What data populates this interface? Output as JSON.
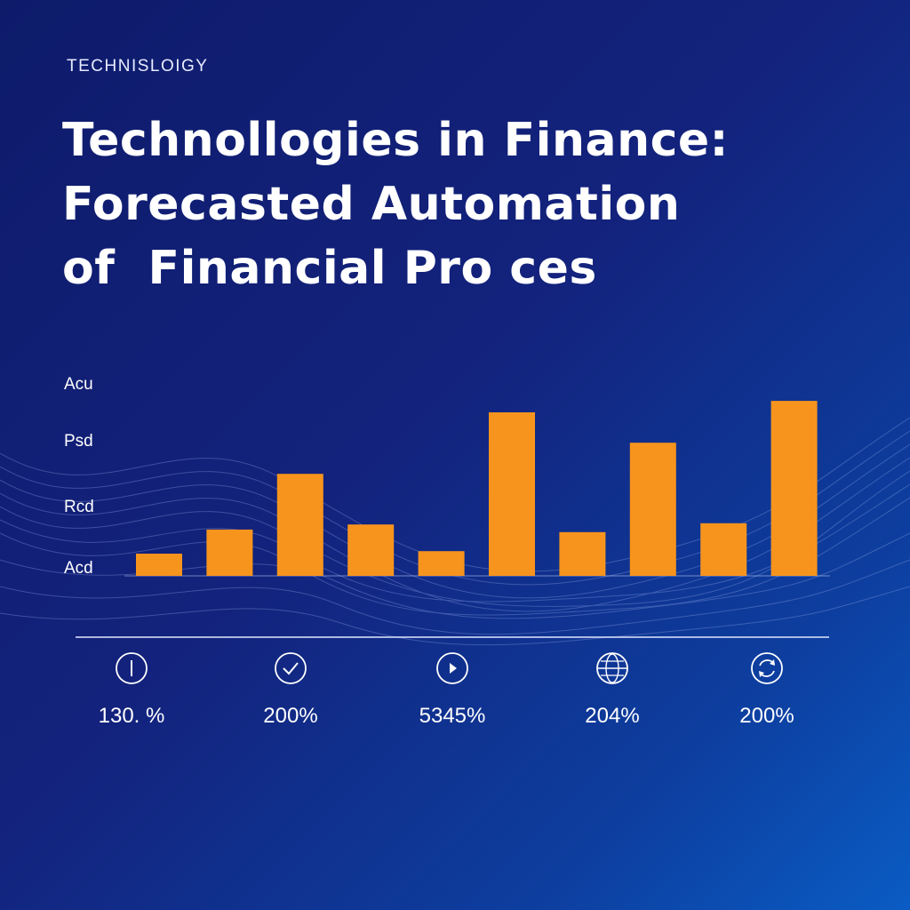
{
  "header": {
    "eyebrow": "TECHNISLOIGY",
    "title_lines": [
      "Technollogies in Finance:",
      "Forecasted Automation",
      "of  Financial Pro ces"
    ]
  },
  "colors": {
    "bar": "#f7941d",
    "background_start": "#0e1b6b",
    "background_end": "#0a5cc4",
    "text": "#ffffff"
  },
  "chart_data": {
    "type": "bar",
    "title": "",
    "xlabel": "",
    "ylabel": "",
    "y_tick_labels": [
      "Acu",
      "Psd",
      "Rcd",
      "Acd"
    ],
    "y_tick_positions": [
      4,
      3,
      2,
      1
    ],
    "ylim": [
      1,
      4
    ],
    "values": [
      1.35,
      1.73,
      2.61,
      1.81,
      1.39,
      3.58,
      1.69,
      3.1,
      1.83,
      3.76
    ],
    "grid": false,
    "legend": "none"
  },
  "stats": [
    {
      "icon": "info-icon",
      "value": "130. %"
    },
    {
      "icon": "check-icon",
      "value": "200%"
    },
    {
      "icon": "play-icon",
      "value": "5345%"
    },
    {
      "icon": "globe-icon",
      "value": "204%"
    },
    {
      "icon": "refresh-icon",
      "value": "200%"
    }
  ]
}
